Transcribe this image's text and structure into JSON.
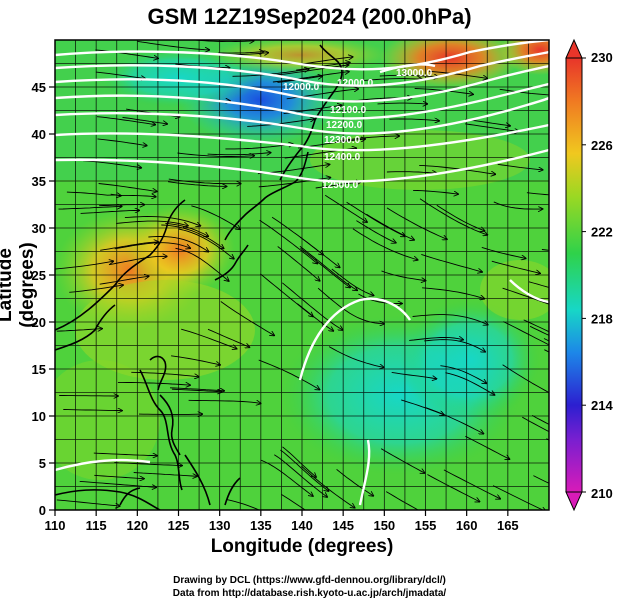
{
  "title": "GSM 12Z19Sep2024 (200.0hPa)",
  "xlabel": "Longitude (degrees)",
  "ylabel": "Latitude  (degrees)",
  "credits": {
    "line1": "Drawing by DCL (https://www.gfd-dennou.org/library/dcl/)",
    "line2": "Data from http://database.rish.kyoto-u.ac.jp/arch/jmadata/"
  },
  "chart_data": {
    "type": "heatmap",
    "variable_shading": "temperature (K)",
    "x_range": [
      110,
      170
    ],
    "y_range": [
      0,
      50
    ],
    "x_ticks": [
      "110",
      "115",
      "120",
      "125",
      "130",
      "135",
      "140",
      "145",
      "150",
      "155",
      "160",
      "165"
    ],
    "y_ticks": [
      "0",
      "5",
      "10",
      "15",
      "20",
      "25",
      "30",
      "35",
      "40",
      "45"
    ],
    "colorbar": {
      "min": 210,
      "max": 230,
      "ticks": [
        "210",
        "214",
        "218",
        "222",
        "226",
        "230"
      ],
      "colors": [
        "#d81bb8",
        "#2c1fd0",
        "#1d86e8",
        "#17d7c6",
        "#2fd24a",
        "#9ad823",
        "#f0c81f",
        "#f07a22",
        "#e8352a"
      ]
    },
    "height_contour_labels": [
      "12000.0",
      "12000.0",
      "12100.0",
      "12200.0",
      "12300.0",
      "12400.0",
      "12500.0",
      "13000.0"
    ],
    "grid": true,
    "overlay": "wind streamlines with arrows, coastlines"
  }
}
